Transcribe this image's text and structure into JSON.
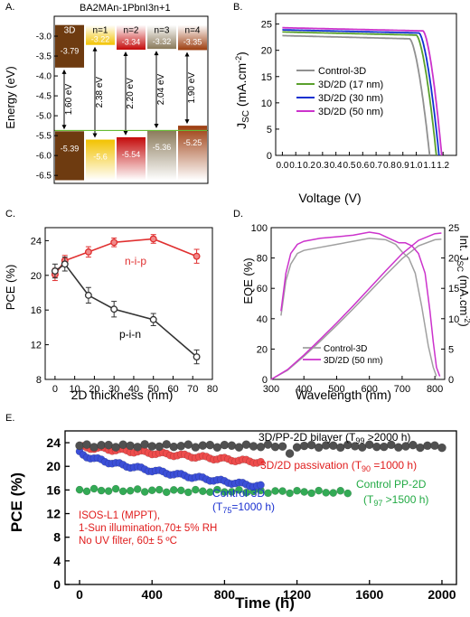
{
  "figure": {
    "panels": [
      {
        "id": "A",
        "label": "A."
      },
      {
        "id": "B",
        "label": "B."
      },
      {
        "id": "C",
        "label": "C."
      },
      {
        "id": "D",
        "label": "D."
      },
      {
        "id": "E",
        "label": "E."
      }
    ]
  },
  "chart_data": [
    {
      "panel": "A",
      "type": "bar",
      "title": "BA2MAn-1PbnI3n+1",
      "ylabel": "Energy (eV)",
      "ylim": [
        -6.7,
        -2.5
      ],
      "yticks": [
        "-3.0",
        "-3.5",
        "-4.0",
        "-4.5",
        "-5.0",
        "-5.5",
        "-6.0",
        "-6.5"
      ],
      "grid": false,
      "categories": [
        "3D",
        "n=1",
        "n=2",
        "n=3",
        "n=4"
      ],
      "cbm": [
        -3.79,
        -3.22,
        -3.34,
        -3.32,
        -3.35
      ],
      "vbm": [
        -5.39,
        -5.6,
        -5.54,
        -5.36,
        -5.25
      ],
      "cbm_labels": [
        "-3.79",
        "-3.22",
        "-3.34",
        "-3.32",
        "-3.35"
      ],
      "vbm_labels": [
        "-5.39",
        "-5.6",
        "-5.54",
        "-5.36",
        "-5.25"
      ],
      "bandgap_labels": [
        "1.60 eV",
        "2.38 eV",
        "2.20 eV",
        "2.04 eV",
        "1.90 eV"
      ],
      "colors": [
        "#6e3b10",
        "#f2c200",
        "#c40a0a",
        "#8a7a5a",
        "#9c3c0e"
      ]
    },
    {
      "panel": "B",
      "type": "line",
      "xlabel": "Voltage (V)",
      "ylabel": "JSC (mA.cm-2)",
      "xlim": [
        -0.05,
        1.3
      ],
      "ylim": [
        0,
        27
      ],
      "xticks": [
        "0.0",
        "0.1",
        "0.2",
        "0.3",
        "0.4",
        "0.5",
        "0.6",
        "0.7",
        "0.8",
        "0.9",
        "1.0",
        "1.1",
        "1.2"
      ],
      "yticks": [
        "0",
        "5",
        "10",
        "15",
        "20",
        "25"
      ],
      "legend_position": "right",
      "series": [
        {
          "name": "Control-3D",
          "color": "#909090",
          "jsc": 22.8,
          "voc": 1.1,
          "knee": 0.95
        },
        {
          "name": "3D/2D (17 nm)",
          "color": "#5aa02c",
          "jsc": 23.5,
          "voc": 1.15,
          "knee": 1.0
        },
        {
          "name": "3D/2D (30 nm)",
          "color": "#1030d0",
          "jsc": 23.9,
          "voc": 1.17,
          "knee": 1.02
        },
        {
          "name": "3D/2D (50 nm)",
          "color": "#cc33cc",
          "jsc": 24.3,
          "voc": 1.19,
          "knee": 1.05
        }
      ]
    },
    {
      "panel": "C",
      "type": "line",
      "xlabel": "2D thickness (nm)",
      "ylabel": "PCE (%)",
      "xlim": [
        -5,
        80
      ],
      "ylim": [
        8,
        25.5
      ],
      "xticks": [
        "0",
        "10",
        "20",
        "30",
        "40",
        "50",
        "60",
        "70",
        "80"
      ],
      "yticks": [
        "8",
        "12",
        "16",
        "20",
        "24"
      ],
      "series": [
        {
          "name": "n-i-p",
          "color": "#e03030",
          "x": [
            0,
            5,
            17,
            30,
            50,
            72
          ],
          "y": [
            20.1,
            21.7,
            22.7,
            23.8,
            24.2,
            22.2
          ],
          "err": [
            0.7,
            0.6,
            0.6,
            0.5,
            0.5,
            0.8
          ]
        },
        {
          "name": "p-i-n",
          "color": "#333333",
          "x": [
            0,
            5,
            17,
            30,
            50,
            72
          ],
          "y": [
            20.5,
            21.3,
            17.7,
            16.1,
            14.9,
            10.6
          ],
          "err": [
            0.8,
            0.8,
            0.9,
            0.9,
            0.7,
            0.8
          ]
        }
      ]
    },
    {
      "panel": "D",
      "type": "line",
      "xlabel": "Wavelength (nm)",
      "ylabel": "EQE (%)",
      "y2label": "Int. JSC (mA.cm-2)",
      "xlim": [
        300,
        830
      ],
      "ylim": [
        0,
        100
      ],
      "y2lim": [
        0,
        25
      ],
      "xticks": [
        "300",
        "400",
        "500",
        "600",
        "700",
        "800"
      ],
      "yticks": [
        "0",
        "20",
        "40",
        "60",
        "80",
        "100"
      ],
      "y2ticks": [
        "0",
        "5",
        "10",
        "15",
        "20",
        "25"
      ],
      "legend_position": "bottom-left",
      "series": [
        {
          "name": "Control-3D",
          "color": "#a0a0a0",
          "eqe": [
            [
              330,
              42
            ],
            [
              345,
              65
            ],
            [
              360,
              76
            ],
            [
              380,
              83
            ],
            [
              400,
              85
            ],
            [
              450,
              87
            ],
            [
              500,
              89
            ],
            [
              550,
              91
            ],
            [
              600,
              93
            ],
            [
              650,
              92
            ],
            [
              680,
              89
            ],
            [
              700,
              84
            ],
            [
              720,
              80
            ],
            [
              740,
              70
            ],
            [
              760,
              48
            ],
            [
              780,
              22
            ],
            [
              795,
              8
            ],
            [
              805,
              2
            ]
          ],
          "jsc": [
            [
              300,
              0
            ],
            [
              350,
              1.5
            ],
            [
              400,
              3.8
            ],
            [
              450,
              6.3
            ],
            [
              500,
              8.9
            ],
            [
              550,
              11.6
            ],
            [
              600,
              14.4
            ],
            [
              650,
              17.2
            ],
            [
              700,
              19.9
            ],
            [
              750,
              22.0
            ],
            [
              800,
              23.0
            ],
            [
              820,
              23.1
            ]
          ]
        },
        {
          "name": "3D/2D (50 nm)",
          "color": "#cc33cc",
          "eqe": [
            [
              330,
              45
            ],
            [
              345,
              70
            ],
            [
              360,
              83
            ],
            [
              380,
              89
            ],
            [
              400,
              91
            ],
            [
              450,
              93
            ],
            [
              500,
              94
            ],
            [
              550,
              95
            ],
            [
              600,
              97
            ],
            [
              630,
              96
            ],
            [
              660,
              93
            ],
            [
              690,
              90
            ],
            [
              710,
              90
            ],
            [
              730,
              88
            ],
            [
              750,
              83
            ],
            [
              770,
              70
            ],
            [
              785,
              45
            ],
            [
              795,
              25
            ],
            [
              805,
              8
            ],
            [
              815,
              2
            ]
          ],
          "jsc": [
            [
              300,
              0
            ],
            [
              350,
              1.6
            ],
            [
              400,
              4.0
            ],
            [
              450,
              6.6
            ],
            [
              500,
              9.3
            ],
            [
              550,
              12.1
            ],
            [
              600,
              15.0
            ],
            [
              650,
              17.9
            ],
            [
              700,
              20.7
            ],
            [
              750,
              22.9
            ],
            [
              800,
              24.0
            ],
            [
              820,
              24.1
            ]
          ]
        }
      ]
    },
    {
      "panel": "E",
      "type": "scatter",
      "xlabel": "Time (h)",
      "ylabel": "PCE (%)",
      "xlim": [
        -80,
        2080
      ],
      "ylim": [
        0,
        26
      ],
      "xticks": [
        "0",
        "400",
        "800",
        "1200",
        "1600",
        "2000"
      ],
      "yticks": [
        "0",
        "4",
        "8",
        "12",
        "16",
        "20",
        "24"
      ],
      "annotations": [
        "ISOS-L1 (MPPT),",
        "1-Sun illumination,70± 5% RH",
        "No UV filter, 60± 5 ºC"
      ],
      "series": [
        {
          "name": "3D/PP-2D bilayer",
          "label_main": "3D/PP-2D bilayer (T",
          "label_sub": "99",
          "label_tail": " >2000 h)",
          "color": "#505050",
          "start": 23.5,
          "end": 23.4,
          "t_max": 2000,
          "step": 40
        },
        {
          "name": "3D/2D passivation",
          "label_main": "3D/2D passivation (T",
          "label_sub": "90",
          "label_tail": " =1000 h)",
          "color": "#ee4c4c",
          "start": 23.3,
          "end": 20.7,
          "t_max": 1000,
          "step": 20
        },
        {
          "name": "Control-3D",
          "label_main": "Control-3D",
          "label2_main": "(T",
          "label_sub": "75",
          "label_tail": "=1000 h)",
          "color": "#3b4fd8",
          "start": 22.3,
          "end": 16.6,
          "t_max": 1000,
          "step": 20
        },
        {
          "name": "Control PP-2D",
          "label_main": "Control PP-2D",
          "label2_main": "(T",
          "label_sub": "97",
          "label_tail": " >1500 h)",
          "color": "#33aa55",
          "start": 16.0,
          "end": 15.6,
          "t_max": 1500,
          "step": 40
        }
      ]
    }
  ]
}
